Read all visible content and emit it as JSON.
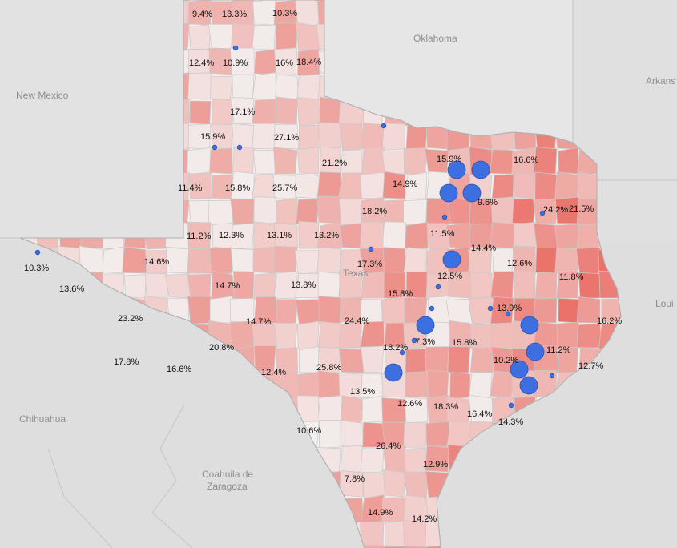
{
  "map": {
    "region": "Texas",
    "colors": {
      "background": "#dcdcdc",
      "texas_base": "#f0f0f0",
      "choropleth_low": "#f4f2f2",
      "choropleth_high": "#e8574d",
      "city_dot": "#3d6fe0"
    },
    "place_labels": {
      "oklahoma": "Oklahoma",
      "new_mexico": "New Mexico",
      "arkansas": "Arkans",
      "louisiana": "Loui",
      "texas": "Texas",
      "chihuahua": "Chihuahua",
      "coahuila_line1": "Coahuila de",
      "coahuila_line2": "Zaragoza"
    },
    "county_labels": [
      {
        "id": "c01",
        "text": "9.4%"
      },
      {
        "id": "c02",
        "text": "13.3%"
      },
      {
        "id": "c03",
        "text": "10.3%"
      },
      {
        "id": "c04",
        "text": "12.4%"
      },
      {
        "id": "c05",
        "text": "10.9%"
      },
      {
        "id": "c06",
        "text": "16%"
      },
      {
        "id": "c07",
        "text": "18.4%"
      },
      {
        "id": "c08",
        "text": "17.1%"
      },
      {
        "id": "c09",
        "text": "15.9%"
      },
      {
        "id": "c10",
        "text": "27.1%"
      },
      {
        "id": "c11",
        "text": "21.2%"
      },
      {
        "id": "c12",
        "text": "11.4%"
      },
      {
        "id": "c13",
        "text": "15.8%"
      },
      {
        "id": "c14",
        "text": "25.7%"
      },
      {
        "id": "c15",
        "text": "15.9%"
      },
      {
        "id": "c16",
        "text": "16.6%"
      },
      {
        "id": "c17",
        "text": "14.9%"
      },
      {
        "id": "c18",
        "text": "9.6%"
      },
      {
        "id": "c19",
        "text": "24.2%"
      },
      {
        "id": "c20",
        "text": "21.5%"
      },
      {
        "id": "c21",
        "text": "18.2%"
      },
      {
        "id": "c22",
        "text": "11.2%"
      },
      {
        "id": "c23",
        "text": "12.3%"
      },
      {
        "id": "c24",
        "text": "13.1%"
      },
      {
        "id": "c25",
        "text": "13.2%"
      },
      {
        "id": "c26",
        "text": "11.5%"
      },
      {
        "id": "c27",
        "text": "10.3%"
      },
      {
        "id": "c28",
        "text": "14.6%"
      },
      {
        "id": "c29",
        "text": "14.4%"
      },
      {
        "id": "c30",
        "text": "12.6%"
      },
      {
        "id": "c31",
        "text": "17.3%"
      },
      {
        "id": "c32",
        "text": "13.6%"
      },
      {
        "id": "c33",
        "text": "14.7%"
      },
      {
        "id": "c34",
        "text": "13.8%"
      },
      {
        "id": "c35",
        "text": "12.5%"
      },
      {
        "id": "c36",
        "text": "11.8%"
      },
      {
        "id": "c37",
        "text": "15.8%"
      },
      {
        "id": "c38",
        "text": "13.9%"
      },
      {
        "id": "c39",
        "text": "23.2%"
      },
      {
        "id": "c40",
        "text": "14.7%"
      },
      {
        "id": "c41",
        "text": "24.4%"
      },
      {
        "id": "c42",
        "text": "16.2%"
      },
      {
        "id": "c43",
        "text": "7.3%"
      },
      {
        "id": "c44",
        "text": "15.8%"
      },
      {
        "id": "c45",
        "text": "20.8%"
      },
      {
        "id": "c46",
        "text": "18.2%"
      },
      {
        "id": "c47",
        "text": "11.2%"
      },
      {
        "id": "c48",
        "text": "17.8%"
      },
      {
        "id": "c49",
        "text": "16.6%"
      },
      {
        "id": "c50",
        "text": "10.2%"
      },
      {
        "id": "c51",
        "text": "12.7%"
      },
      {
        "id": "c52",
        "text": "12.4%"
      },
      {
        "id": "c53",
        "text": "25.8%"
      },
      {
        "id": "c54",
        "text": "13.5%"
      },
      {
        "id": "c55",
        "text": "12.6%"
      },
      {
        "id": "c56",
        "text": "18.3%"
      },
      {
        "id": "c57",
        "text": "16.4%"
      },
      {
        "id": "c58",
        "text": "14.3%"
      },
      {
        "id": "c59",
        "text": "10.6%"
      },
      {
        "id": "c60",
        "text": "26.4%"
      },
      {
        "id": "c61",
        "text": "12.9%"
      },
      {
        "id": "c62",
        "text": "7.8%"
      },
      {
        "id": "c63",
        "text": "14.9%"
      },
      {
        "id": "c64",
        "text": "14.2%"
      }
    ],
    "city_markers": [
      {
        "id": "dallas-west",
        "size": "large"
      },
      {
        "id": "dallas-east",
        "size": "large"
      },
      {
        "id": "fort-worth",
        "size": "large"
      },
      {
        "id": "dallas-south",
        "size": "large"
      },
      {
        "id": "waco",
        "size": "large"
      },
      {
        "id": "austin",
        "size": "large"
      },
      {
        "id": "san-antonio",
        "size": "large"
      },
      {
        "id": "houston-north",
        "size": "large"
      },
      {
        "id": "houston-east",
        "size": "large"
      },
      {
        "id": "houston",
        "size": "large"
      },
      {
        "id": "houston-south",
        "size": "large"
      },
      {
        "id": "amarillo",
        "size": "small"
      },
      {
        "id": "lubbock-west",
        "size": "small"
      },
      {
        "id": "lubbock-east",
        "size": "small"
      },
      {
        "id": "wichita-falls",
        "size": "small"
      },
      {
        "id": "abilene",
        "size": "small"
      },
      {
        "id": "temple",
        "size": "small"
      },
      {
        "id": "killeen",
        "size": "small"
      },
      {
        "id": "el-paso",
        "size": "small"
      },
      {
        "id": "tyler",
        "size": "small"
      },
      {
        "id": "bryan",
        "size": "small"
      },
      {
        "id": "conroe",
        "size": "small"
      },
      {
        "id": "beaumont",
        "size": "small"
      },
      {
        "id": "new-braunfels",
        "size": "small"
      },
      {
        "id": "san-marcos",
        "size": "small"
      },
      {
        "id": "galveston",
        "size": "small"
      },
      {
        "id": "stephenville",
        "size": "small"
      }
    ]
  }
}
